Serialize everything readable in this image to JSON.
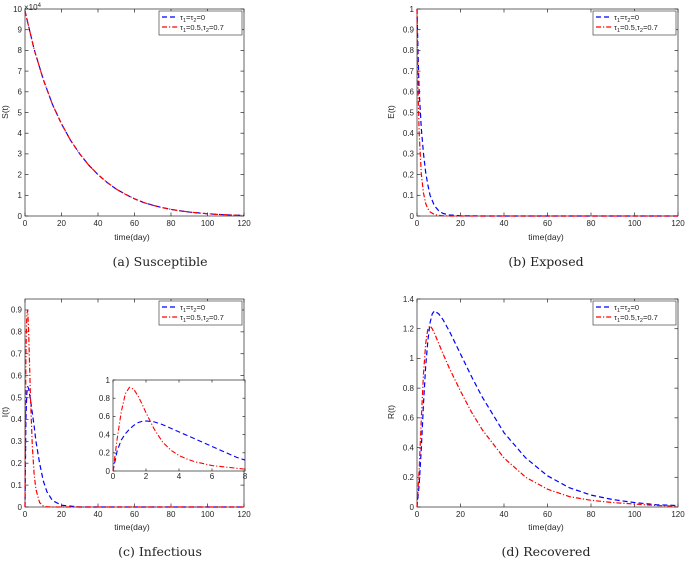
{
  "legend": {
    "series1": {
      "tau": "τ",
      "s1": "1",
      "eq1": "=",
      "tau2": "τ",
      "s2": "2",
      "tail": "=0"
    },
    "series2": {
      "tau": "τ",
      "s1": "1",
      "eq1": "=0.5,",
      "tau2": "τ",
      "s2": "2",
      "tail": "=0.7"
    }
  },
  "colors": {
    "series1": "#0000ff",
    "series2": "#ff0000",
    "axes": "#262626"
  },
  "chart_data": [
    {
      "id": "S",
      "type": "line",
      "caption": "(a)  Susceptible",
      "xlabel": "time(day)",
      "ylabel": "S(t)",
      "xlim": [
        0,
        120
      ],
      "ylim": [
        0,
        10
      ],
      "xticks": [
        "0",
        "20",
        "40",
        "60",
        "80",
        "100",
        "120"
      ],
      "yticks": [
        "0",
        "1",
        "2",
        "3",
        "4",
        "5",
        "6",
        "7",
        "8",
        "9",
        "10"
      ],
      "y_multiplier": "×10",
      "y_multiplier_exp": "4",
      "legend_position": "top-right",
      "x": [
        0,
        5,
        10,
        15,
        20,
        25,
        30,
        35,
        40,
        45,
        50,
        55,
        60,
        65,
        70,
        75,
        80,
        85,
        90,
        95,
        100,
        105,
        110,
        115,
        120
      ],
      "series": [
        {
          "values": [
            9.9,
            8.05,
            6.6,
            5.4,
            4.45,
            3.65,
            3.0,
            2.45,
            2.0,
            1.62,
            1.3,
            1.05,
            0.83,
            0.65,
            0.52,
            0.41,
            0.32,
            0.25,
            0.19,
            0.15,
            0.11,
            0.08,
            0.06,
            0.04,
            0.03
          ]
        },
        {
          "values": [
            9.9,
            8.05,
            6.6,
            5.4,
            4.45,
            3.65,
            3.0,
            2.45,
            2.0,
            1.62,
            1.3,
            1.05,
            0.83,
            0.65,
            0.52,
            0.41,
            0.32,
            0.25,
            0.19,
            0.15,
            0.11,
            0.08,
            0.06,
            0.04,
            0.03
          ]
        }
      ]
    },
    {
      "id": "E",
      "type": "line",
      "caption": "(b)  Exposed",
      "xlabel": "time(day)",
      "ylabel": "E(t)",
      "xlim": [
        0,
        120
      ],
      "ylim": [
        0,
        1
      ],
      "xticks": [
        "0",
        "20",
        "40",
        "60",
        "80",
        "100",
        "120"
      ],
      "yticks": [
        "0",
        "0.1",
        "0.2",
        "0.3",
        "0.4",
        "0.5",
        "0.6",
        "0.7",
        "0.8",
        "0.9",
        "1"
      ],
      "legend_position": "top-right",
      "x": [
        0,
        0.5,
        1,
        2,
        3,
        4,
        5,
        6,
        8,
        10,
        12,
        15,
        20,
        30,
        60,
        90,
        120
      ],
      "series": [
        {
          "values": [
            1.0,
            0.78,
            0.6,
            0.42,
            0.3,
            0.21,
            0.15,
            0.1,
            0.05,
            0.025,
            0.012,
            0.005,
            0.001,
            0,
            0,
            0,
            0
          ]
        },
        {
          "values": [
            1.0,
            0.6,
            0.4,
            0.2,
            0.11,
            0.06,
            0.035,
            0.02,
            0.007,
            0.003,
            0.001,
            0,
            0,
            0,
            0,
            0,
            0
          ]
        }
      ]
    },
    {
      "id": "I",
      "type": "line",
      "caption": "(c)  Infectious",
      "xlabel": "time(day)",
      "ylabel": "I(t)",
      "xlim": [
        0,
        120
      ],
      "ylim": [
        0,
        0.95
      ],
      "xticks": [
        "0",
        "20",
        "40",
        "60",
        "80",
        "100",
        "120"
      ],
      "yticks": [
        "0",
        "0.1",
        "0.2",
        "0.3",
        "0.4",
        "0.5",
        "0.6",
        "0.7",
        "0.8",
        "0.9"
      ],
      "legend_position": "top-right",
      "x": [
        0,
        0.5,
        1,
        1.5,
        2,
        3,
        4,
        5,
        6,
        8,
        10,
        12,
        15,
        20,
        30,
        60,
        90,
        120
      ],
      "series": [
        {
          "values": [
            0,
            0.4,
            0.52,
            0.55,
            0.54,
            0.49,
            0.43,
            0.37,
            0.3,
            0.2,
            0.12,
            0.07,
            0.03,
            0.008,
            0,
            0,
            0,
            0
          ]
        },
        {
          "values": [
            0,
            0.7,
            0.88,
            0.9,
            0.8,
            0.5,
            0.28,
            0.15,
            0.08,
            0.02,
            0.005,
            0.001,
            0,
            0,
            0,
            0,
            0,
            0
          ]
        }
      ],
      "inset": {
        "xlim": [
          0,
          8
        ],
        "ylim": [
          0,
          1
        ],
        "xticks": [
          "0",
          "2",
          "4",
          "6",
          "8"
        ],
        "yticks": [
          "0",
          "0.2",
          "0.4",
          "0.6",
          "0.8",
          "1"
        ],
        "x": [
          0,
          0.25,
          0.5,
          0.75,
          1,
          1.25,
          1.5,
          1.75,
          2,
          2.5,
          3,
          3.5,
          4,
          4.5,
          5,
          5.5,
          6,
          6.5,
          7,
          7.5,
          8
        ],
        "series": [
          {
            "values": [
              0,
              0.22,
              0.34,
              0.41,
              0.46,
              0.5,
              0.53,
              0.545,
              0.55,
              0.54,
              0.51,
              0.47,
              0.43,
              0.39,
              0.35,
              0.31,
              0.27,
              0.23,
              0.19,
              0.15,
              0.12
            ]
          },
          {
            "values": [
              0,
              0.35,
              0.65,
              0.85,
              0.92,
              0.9,
              0.83,
              0.74,
              0.64,
              0.46,
              0.32,
              0.23,
              0.17,
              0.13,
              0.1,
              0.08,
              0.06,
              0.05,
              0.04,
              0.03,
              0.02
            ]
          }
        ]
      }
    },
    {
      "id": "R",
      "type": "line",
      "caption": "(d)  Recovered",
      "xlabel": "time(day)",
      "ylabel": "R(t)",
      "xlim": [
        0,
        120
      ],
      "ylim": [
        0,
        1.4
      ],
      "xticks": [
        "0",
        "20",
        "40",
        "60",
        "80",
        "100",
        "120"
      ],
      "yticks": [
        "0",
        "0.2",
        "0.4",
        "0.6",
        "0.8",
        "1",
        "1.2",
        "1.4"
      ],
      "legend_position": "top-right",
      "x": [
        0,
        1,
        2,
        3,
        4,
        5,
        6,
        7,
        8,
        10,
        12,
        15,
        20,
        25,
        30,
        40,
        50,
        60,
        70,
        80,
        90,
        100,
        110,
        120
      ],
      "series": [
        {
          "values": [
            0,
            0.15,
            0.4,
            0.7,
            0.95,
            1.12,
            1.24,
            1.3,
            1.32,
            1.3,
            1.26,
            1.18,
            1.03,
            0.88,
            0.74,
            0.5,
            0.33,
            0.21,
            0.13,
            0.08,
            0.05,
            0.03,
            0.015,
            0.01
          ]
        },
        {
          "values": [
            0,
            0.25,
            0.6,
            0.9,
            1.1,
            1.2,
            1.22,
            1.2,
            1.17,
            1.1,
            1.03,
            0.93,
            0.78,
            0.64,
            0.52,
            0.33,
            0.2,
            0.12,
            0.07,
            0.045,
            0.03,
            0.02,
            0.01,
            0.005
          ]
        }
      ]
    }
  ]
}
